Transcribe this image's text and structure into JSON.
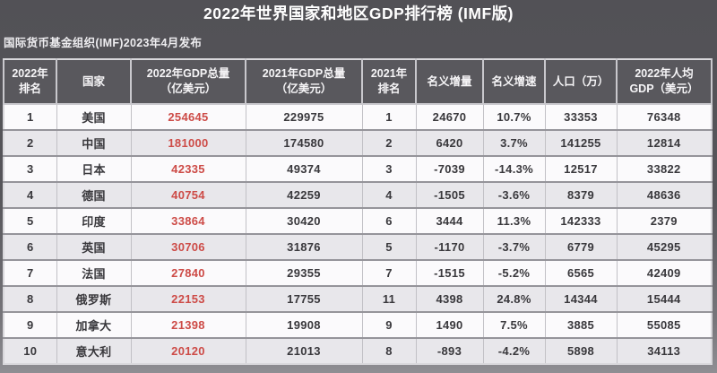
{
  "page": {
    "title": "2022年世界国家和地区GDP排行榜 (IMF版)",
    "subtitle": "国际货币基金组织(IMF)2023年4月发布"
  },
  "colors": {
    "page_background": "#57565b",
    "header_background": "#59585d",
    "header_text": "#f6f5f7",
    "row_light": "#fbfafc",
    "row_dark": "#e8e7eb",
    "text_dark": "#39383c",
    "accent_red": "#cd4b47"
  },
  "chart_data": {
    "type": "table",
    "title": "2022年世界国家和地区GDP排行榜 (IMF版)",
    "subtitle": "国际货币基金组织(IMF)2023年4月发布",
    "columns": [
      "2022年\n排名",
      "国家",
      "2022年GDP总量\n（亿美元）",
      "2021年GDP总量\n（亿美元）",
      "2021年\n排名",
      "名义增量",
      "名义增速",
      "人口（万）",
      "2022年人均\nGDP（美元）"
    ],
    "highlight_column_index": 2,
    "rows": [
      [
        "1",
        "美国",
        "254645",
        "229975",
        "1",
        "24670",
        "10.7%",
        "33353",
        "76348"
      ],
      [
        "2",
        "中国",
        "181000",
        "174580",
        "2",
        "6420",
        "3.7%",
        "141255",
        "12814"
      ],
      [
        "3",
        "日本",
        "42335",
        "49374",
        "3",
        "-7039",
        "-14.3%",
        "12517",
        "33822"
      ],
      [
        "4",
        "德国",
        "40754",
        "42259",
        "4",
        "-1505",
        "-3.6%",
        "8379",
        "48636"
      ],
      [
        "5",
        "印度",
        "33864",
        "30420",
        "6",
        "3444",
        "11.3%",
        "142333",
        "2379"
      ],
      [
        "6",
        "英国",
        "30706",
        "31876",
        "5",
        "-1170",
        "-3.7%",
        "6779",
        "45295"
      ],
      [
        "7",
        "法国",
        "27840",
        "29355",
        "7",
        "-1515",
        "-5.2%",
        "6565",
        "42409"
      ],
      [
        "8",
        "俄罗斯",
        "22153",
        "17755",
        "11",
        "4398",
        "24.8%",
        "14344",
        "15444"
      ],
      [
        "9",
        "加拿大",
        "21398",
        "19908",
        "9",
        "1490",
        "7.5%",
        "3885",
        "55085"
      ],
      [
        "10",
        "意大利",
        "20120",
        "21013",
        "8",
        "-893",
        "-4.2%",
        "5898",
        "34113"
      ]
    ],
    "layout": {
      "legend": "none",
      "grid": "table-borders",
      "row_shading": "alternating"
    }
  }
}
